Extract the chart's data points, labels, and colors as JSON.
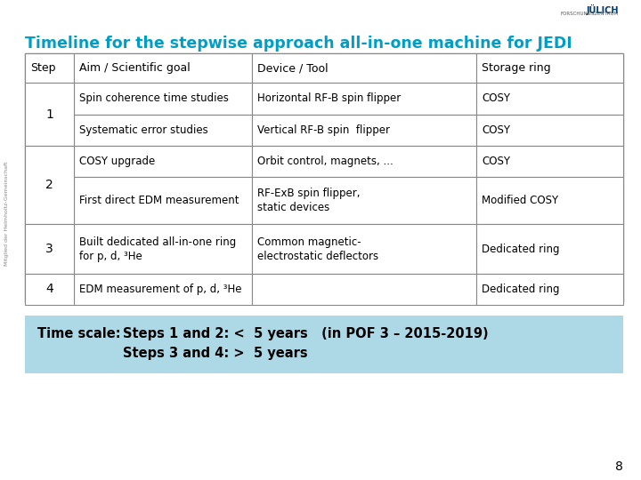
{
  "title": "Timeline for the stepwise approach all-in-one machine for JEDI",
  "title_color": "#009EC6",
  "bg_color": "#FFFFFF",
  "table_header": [
    "Step",
    "Aim / Scientific goal",
    "Device / Tool",
    "Storage ring"
  ],
  "rows": [
    {
      "step": "1",
      "aim": "Spin coherence time studies",
      "device": "Horizontal RF-B spin flipper",
      "storage": "COSY"
    },
    {
      "step": "",
      "aim": "Systematic error studies",
      "device": "Vertical RF-B spin  flipper",
      "storage": "COSY"
    },
    {
      "step": "2",
      "aim": "COSY upgrade",
      "device": "Orbit control, magnets, ...",
      "storage": "COSY"
    },
    {
      "step": "",
      "aim": "First direct EDM measurement",
      "device": "RF-ExB spin flipper,\nstatic devices",
      "storage": "Modified COSY"
    },
    {
      "step": "3",
      "aim": "Built dedicated all-in-one ring\nfor p, d, ³He",
      "device": "Common magnetic-\nelectrostatic deflectors",
      "storage": "Dedicated ring"
    },
    {
      "step": "4",
      "aim": "EDM measurement of p, d, ³He",
      "device": "",
      "storage": "Dedicated ring"
    }
  ],
  "step_groups": [
    {
      "step": "1",
      "row_indices": [
        0,
        1
      ]
    },
    {
      "step": "2",
      "row_indices": [
        2,
        3
      ]
    },
    {
      "step": "3",
      "row_indices": [
        4
      ]
    },
    {
      "step": "4",
      "row_indices": [
        5
      ]
    }
  ],
  "timescale_bg": "#ADD8E6",
  "timescale_label": "Time scale:",
  "timescale_line1": "Steps 1 and 2: <  5 years   (in POF 3 – 2015-2019)",
  "timescale_line2": "Steps 3 and 4: >  5 years",
  "page_num": "8",
  "sidebar_text": "Mitglied der Helmholtz-Gemeinschaft"
}
